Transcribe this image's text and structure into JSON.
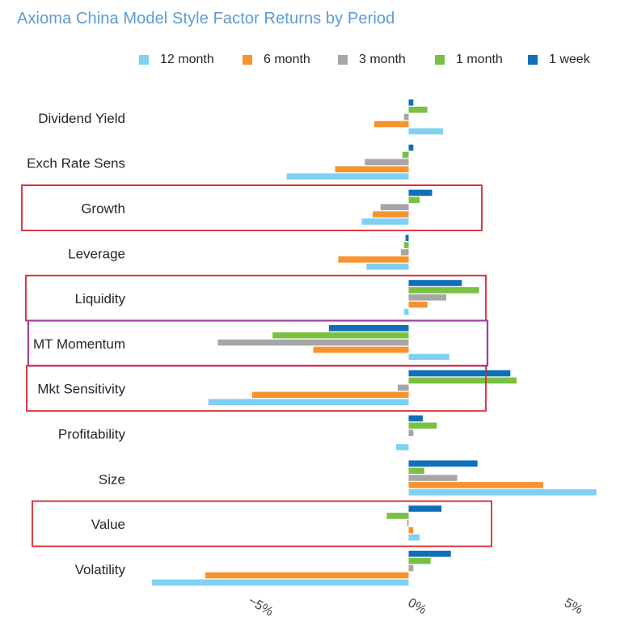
{
  "title": "Axioma China Model Style Factor Returns by Period",
  "chart_data": {
    "type": "bar",
    "orientation": "horizontal",
    "title": "Axioma China Model Style Factor Returns by Period",
    "xlabel": "",
    "ylabel": "",
    "categories": [
      "Dividend Yield",
      "Exch Rate Sens",
      "Growth",
      "Leverage",
      "Liquidity",
      "MT Momentum",
      "Mkt Sensitivity",
      "Profitability",
      "Size",
      "Value",
      "Volatility"
    ],
    "series": [
      {
        "name": "1 week",
        "color": "#0f6fb8",
        "values": [
          0.15,
          0.15,
          0.75,
          -0.1,
          1.7,
          -2.55,
          3.25,
          0.45,
          2.2,
          1.05,
          1.35
        ]
      },
      {
        "name": "1 month",
        "color": "#7ac143",
        "values": [
          0.6,
          -0.2,
          0.35,
          -0.15,
          2.25,
          -4.35,
          3.45,
          0.9,
          0.5,
          -0.7,
          0.7
        ]
      },
      {
        "name": "3 month",
        "color": "#a6a6a6",
        "values": [
          -0.15,
          -1.4,
          -0.9,
          -0.25,
          1.2,
          -6.1,
          -0.35,
          0.15,
          1.55,
          -0.05,
          0.15
        ]
      },
      {
        "name": "6 month",
        "color": "#f7932f",
        "values": [
          -1.1,
          -2.35,
          -1.15,
          -2.25,
          0.6,
          -3.05,
          -5.0,
          0.0,
          4.3,
          0.15,
          -6.5
        ]
      },
      {
        "name": "12 month",
        "color": "#7fd0f2",
        "values": [
          1.1,
          -3.9,
          -1.5,
          -1.35,
          -0.15,
          1.3,
          -6.4,
          -0.4,
          6.0,
          0.35,
          -8.2
        ]
      }
    ],
    "legend_order": [
      "12 month",
      "6 month",
      "3 month",
      "1 month",
      "1 week"
    ],
    "x_ticks": [
      "−5%",
      "0%",
      "5%"
    ],
    "x_tick_values": [
      -5,
      0,
      5
    ],
    "xlim": [
      -9,
      6.5
    ],
    "grid": false,
    "legend_position": "top",
    "highlight_boxes": [
      {
        "category": "Growth",
        "color": "#d9262c"
      },
      {
        "category": "Liquidity",
        "color": "#d9262c"
      },
      {
        "category": "MT Momentum",
        "color": "#9b3f9e"
      },
      {
        "category": "Mkt Sensitivity",
        "color": "#d9262c"
      },
      {
        "category": "Value",
        "color": "#d9262c"
      }
    ]
  }
}
